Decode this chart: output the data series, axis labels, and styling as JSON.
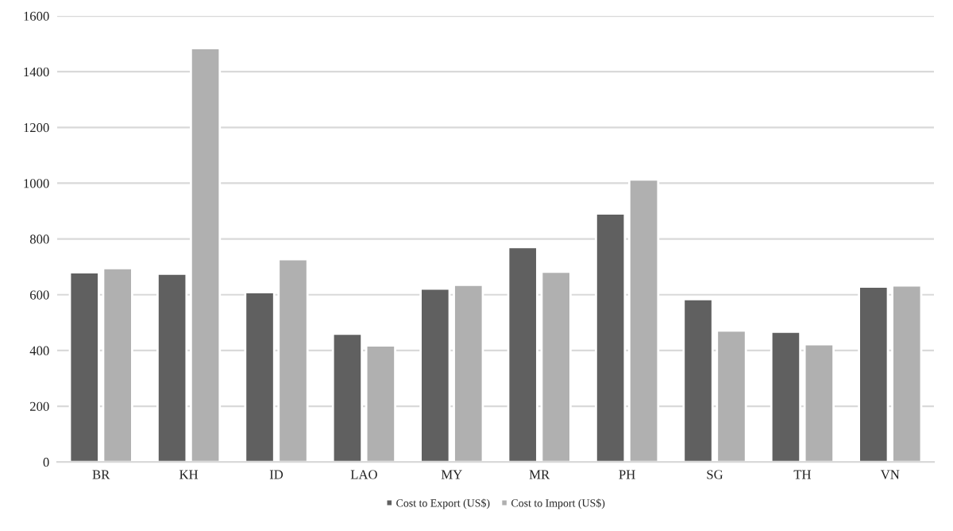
{
  "chart_data": {
    "type": "bar",
    "categories": [
      "BR",
      "KH",
      "ID",
      "LAO",
      "MY",
      "MR",
      "PH",
      "SG",
      "TH",
      "VN"
    ],
    "series": [
      {
        "name": "Cost to Export (US$)",
        "color": "#606060",
        "values": [
          680,
          675,
          609,
          460,
          622,
          771,
          891,
          584,
          467,
          629
        ]
      },
      {
        "name": "Cost to Import (US$)",
        "color": "#b0b0b0",
        "values": [
          695,
          1484,
          727,
          418,
          635,
          682,
          1013,
          471,
          422,
          633
        ]
      }
    ],
    "ylim": [
      0,
      1600
    ],
    "yticks": [
      0,
      200,
      400,
      600,
      800,
      1000,
      1200,
      1400,
      1600
    ],
    "grid": "y",
    "legend": "bottom"
  }
}
